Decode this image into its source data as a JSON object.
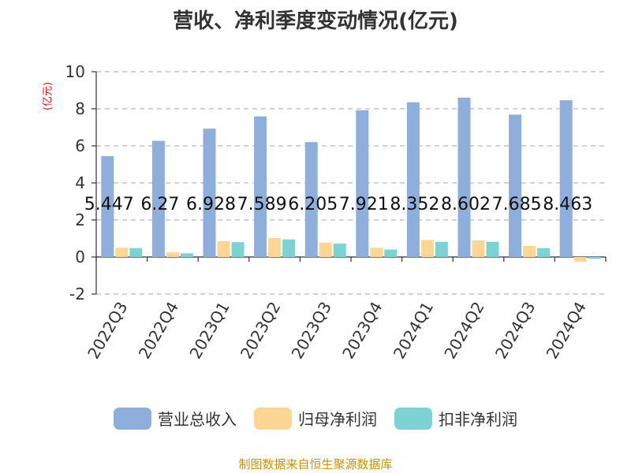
{
  "chart_data": {
    "type": "bar",
    "title": "营收、净利季度变动情况(亿元)",
    "ylabel": "(亿元)",
    "ylim": [
      -2,
      10
    ],
    "yticks": [
      -2,
      0,
      2,
      4,
      6,
      8,
      10
    ],
    "grid": true,
    "legend_position": "bottom",
    "categories": [
      "2022Q3",
      "2022Q4",
      "2023Q1",
      "2023Q2",
      "2023Q3",
      "2023Q4",
      "2024Q1",
      "2024Q2",
      "2024Q3",
      "2024Q4"
    ],
    "series": [
      {
        "name": "营业总收入",
        "color": "#8eaedc",
        "values": [
          5.447,
          6.27,
          6.928,
          7.589,
          6.205,
          7.921,
          8.352,
          8.602,
          7.685,
          8.463
        ],
        "data_labels": [
          "5.447",
          "6.27",
          "6.928",
          "7.589",
          "6.205",
          "7.921",
          "8.352",
          "8.602",
          "7.685",
          "8.463"
        ]
      },
      {
        "name": "归母净利润",
        "color": "#fdd594",
        "values": [
          0.5,
          0.25,
          0.85,
          1.02,
          0.78,
          0.5,
          0.92,
          0.9,
          0.6,
          -0.25
        ]
      },
      {
        "name": "扣非净利润",
        "color": "#7dd3d3",
        "values": [
          0.48,
          0.2,
          0.8,
          0.95,
          0.72,
          0.4,
          0.82,
          0.82,
          0.48,
          -0.1
        ]
      }
    ]
  },
  "footer": {
    "source": "制图数据来自恒生聚源数据库"
  }
}
